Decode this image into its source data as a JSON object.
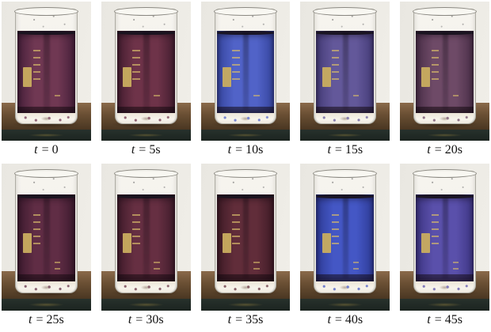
{
  "figure": {
    "caption_symbol": "t",
    "scene": {
      "photo_bg": "#f0eee8",
      "table_top": "#8a6a4b",
      "table_bottom": "#392a18",
      "table_edge": "#27312c",
      "graduation_color": "#c9ad5f",
      "caption_color": "#111111"
    },
    "panels": [
      {
        "time": "= 0",
        "liquid_color": "#703853",
        "liquid_edge": "#46203a"
      },
      {
        "time": "= 5s",
        "liquid_color": "#6e3349",
        "liquid_edge": "#441e30"
      },
      {
        "time": "= 10s",
        "liquid_color": "#5163c8",
        "liquid_edge": "#36459e"
      },
      {
        "time": "= 15s",
        "liquid_color": "#63589a",
        "liquid_edge": "#453c78"
      },
      {
        "time": "= 20s",
        "liquid_color": "#6e4a67",
        "liquid_edge": "#4a2f48"
      },
      {
        "time": "= 25s",
        "liquid_color": "#602d45",
        "liquid_edge": "#3c1a2e"
      },
      {
        "time": "= 30s",
        "liquid_color": "#662f42",
        "liquid_edge": "#401c2b"
      },
      {
        "time": "= 35s",
        "liquid_color": "#612d3a",
        "liquid_edge": "#3e1b26"
      },
      {
        "time": "= 40s",
        "liquid_color": "#4457c5",
        "liquid_edge": "#2e3b96"
      },
      {
        "time": "= 45s",
        "liquid_color": "#5a50ab",
        "liquid_edge": "#3d3582"
      }
    ]
  }
}
